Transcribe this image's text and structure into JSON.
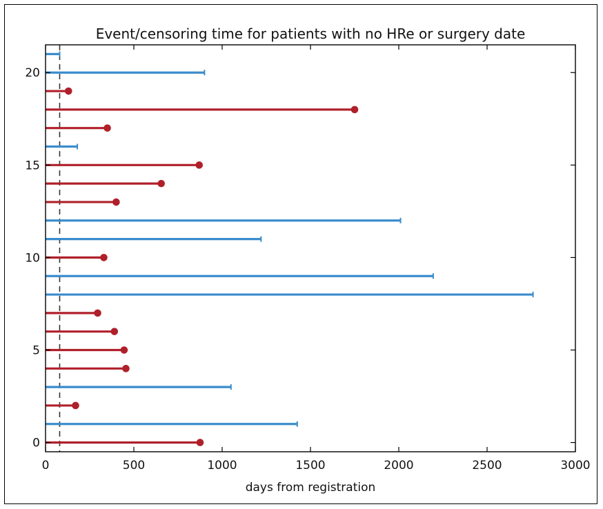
{
  "chart_data": {
    "type": "bar",
    "title": "Event/censoring time for patients with no HRe or surgery date",
    "xlabel": "days from registration",
    "ylabel": "",
    "xlim": [
      0,
      3000
    ],
    "ylim": [
      -0.5,
      21.5
    ],
    "xticks": [
      0,
      500,
      1000,
      1500,
      2000,
      2500,
      3000
    ],
    "yticks": [
      0,
      5,
      10,
      15,
      20
    ],
    "reference_line_x": 80,
    "grid": false,
    "colors": {
      "event": "#b0202a",
      "censored": "#3a8ccc"
    },
    "y": [
      0,
      1,
      2,
      3,
      4,
      5,
      6,
      7,
      8,
      9,
      10,
      11,
      12,
      13,
      14,
      15,
      16,
      17,
      18,
      19,
      20,
      21
    ],
    "values": [
      875,
      1425,
      170,
      1050,
      455,
      445,
      390,
      295,
      2760,
      2195,
      330,
      1220,
      2010,
      400,
      655,
      870,
      180,
      350,
      1750,
      130,
      900,
      80
    ],
    "status": [
      "event",
      "censored",
      "event",
      "censored",
      "event",
      "event",
      "event",
      "event",
      "censored",
      "censored",
      "event",
      "censored",
      "censored",
      "event",
      "event",
      "event",
      "censored",
      "event",
      "event",
      "event",
      "censored",
      "censored"
    ]
  }
}
